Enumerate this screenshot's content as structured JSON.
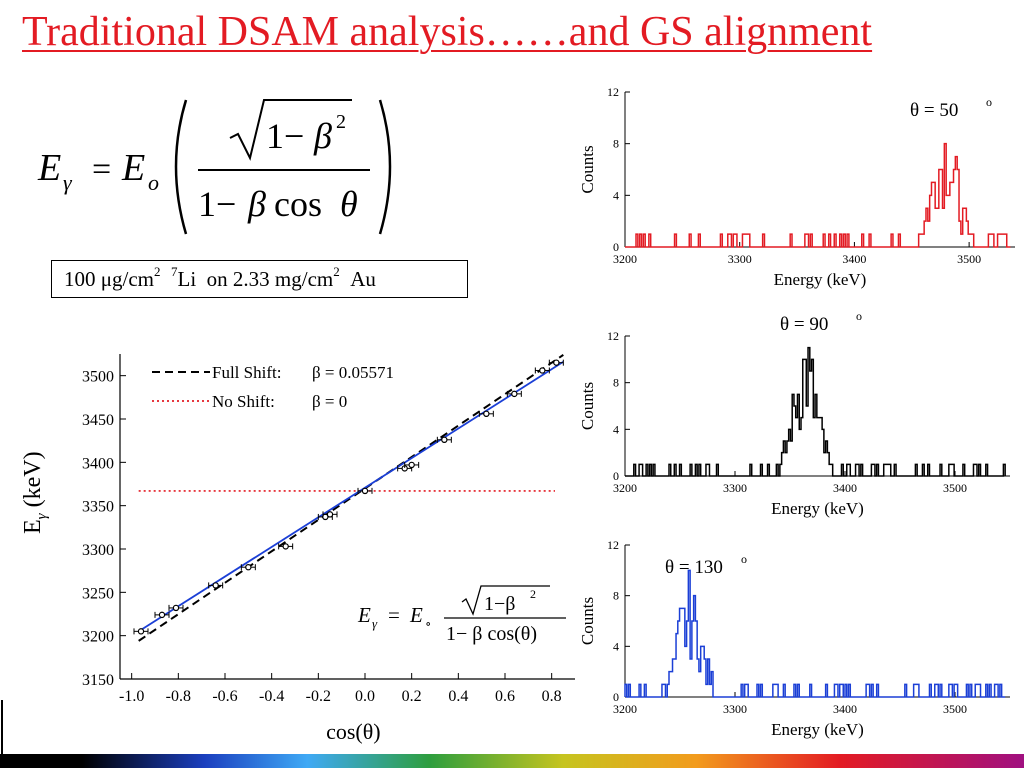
{
  "title": "Traditional DSAM analysis……and GS alignment",
  "formula": {
    "lhs_var": "E",
    "lhs_sub": "γ",
    "eq": "=",
    "rhs_var": "E",
    "rhs_sub": "o",
    "sqrt_one_minus": "1−",
    "beta": "β",
    "exp": "2",
    "den_one_minus": "1−",
    "den_beta": "β",
    "den_cos": "cos",
    "den_theta": "θ"
  },
  "target": {
    "thickness": "100 μg/cm",
    "exp1": "2",
    "iso_mass": "7",
    "element": "Li",
    "rest": "on 2.33 mg/cm",
    "exp2": "2",
    "backing": "Au"
  },
  "chart_data": [
    {
      "type": "line",
      "id": "spectrum-50",
      "annotation": "θ = 50",
      "annotation_sup": "o",
      "xlabel": "Energy (keV)",
      "ylabel": "Counts",
      "xlim": [
        3200,
        3540
      ],
      "ylim": [
        0,
        12
      ],
      "xticks": [
        3200,
        3300,
        3400,
        3500
      ],
      "yticks": [
        0,
        4,
        8,
        12
      ],
      "color": "#e31b23",
      "peak_center": 3478,
      "peak_sigma": 11,
      "peak_height": 9,
      "background_level": 1
    },
    {
      "type": "line",
      "id": "spectrum-90",
      "annotation": "θ = 90",
      "annotation_sup": "o",
      "xlabel": "Energy (keV)",
      "ylabel": "Counts",
      "xlim": [
        3200,
        3550
      ],
      "ylim": [
        0,
        12
      ],
      "xticks": [
        3200,
        3300,
        3400,
        3500
      ],
      "yticks": [
        0,
        4,
        8,
        12
      ],
      "color": "#000000",
      "peak_center": 3363,
      "peak_sigma": 11,
      "peak_height": 11,
      "background_level": 1
    },
    {
      "type": "line",
      "id": "spectrum-130",
      "annotation": "θ = 130",
      "annotation_sup": "o",
      "xlabel": "Energy (keV)",
      "ylabel": "Counts",
      "xlim": [
        3200,
        3550
      ],
      "ylim": [
        0,
        12
      ],
      "xticks": [
        3200,
        3300,
        3400,
        3500
      ],
      "yticks": [
        0,
        4,
        8,
        12
      ],
      "color": "#1b3fd6",
      "peak_center": 3258,
      "peak_sigma": 11,
      "peak_height": 8,
      "background_level": 1
    },
    {
      "type": "scatter",
      "id": "main-plot",
      "xlabel": "cos(θ)",
      "ylabel_main": "E",
      "ylabel_sub": "γ",
      "ylabel_unit": " (keV)",
      "xlim": [
        -1.05,
        0.9
      ],
      "ylim": [
        3150,
        3525
      ],
      "xtick_labels": [
        "-1.0",
        "-0.8",
        "-0.6",
        "-0.4",
        "-0.2",
        "0.0",
        "0.2",
        "0.4",
        "0.6",
        "0.8"
      ],
      "yticks": [
        3150,
        3200,
        3250,
        3300,
        3350,
        3400,
        3450,
        3500
      ],
      "legend": [
        {
          "label": "Full Shift:",
          "value": "β = 0.05571",
          "style": "dashed",
          "color": "#000000"
        },
        {
          "label": "No Shift:",
          "value": "β = 0",
          "style": "dotted",
          "color": "#e31b23"
        }
      ],
      "no_shift_level": 3367,
      "full_shift": {
        "x": [
          -0.97,
          0.85
        ],
        "y": [
          3194,
          3524
        ]
      },
      "fit_line": {
        "x": [
          -0.97,
          0.85
        ],
        "y": [
          3205,
          3516
        ],
        "color": "#1b3fd6"
      },
      "points": [
        {
          "x": -0.96,
          "y": 3205
        },
        {
          "x": -0.87,
          "y": 3224
        },
        {
          "x": -0.81,
          "y": 3232
        },
        {
          "x": -0.64,
          "y": 3258
        },
        {
          "x": -0.5,
          "y": 3279
        },
        {
          "x": -0.34,
          "y": 3303
        },
        {
          "x": -0.17,
          "y": 3337
        },
        {
          "x": -0.15,
          "y": 3340
        },
        {
          "x": 0.0,
          "y": 3367
        },
        {
          "x": 0.17,
          "y": 3393
        },
        {
          "x": 0.2,
          "y": 3397
        },
        {
          "x": 0.34,
          "y": 3426
        },
        {
          "x": 0.52,
          "y": 3456
        },
        {
          "x": 0.64,
          "y": 3479
        },
        {
          "x": 0.76,
          "y": 3506
        },
        {
          "x": 0.82,
          "y": 3515
        }
      ],
      "inset_formula": {
        "lhs": "E",
        "lhs_sub": "γ",
        "eq": "=",
        "rhs": "E",
        "rhs_sub": "∘",
        "num": "1−β",
        "num_exp": "2",
        "den": "1− β cos(θ)"
      }
    }
  ]
}
